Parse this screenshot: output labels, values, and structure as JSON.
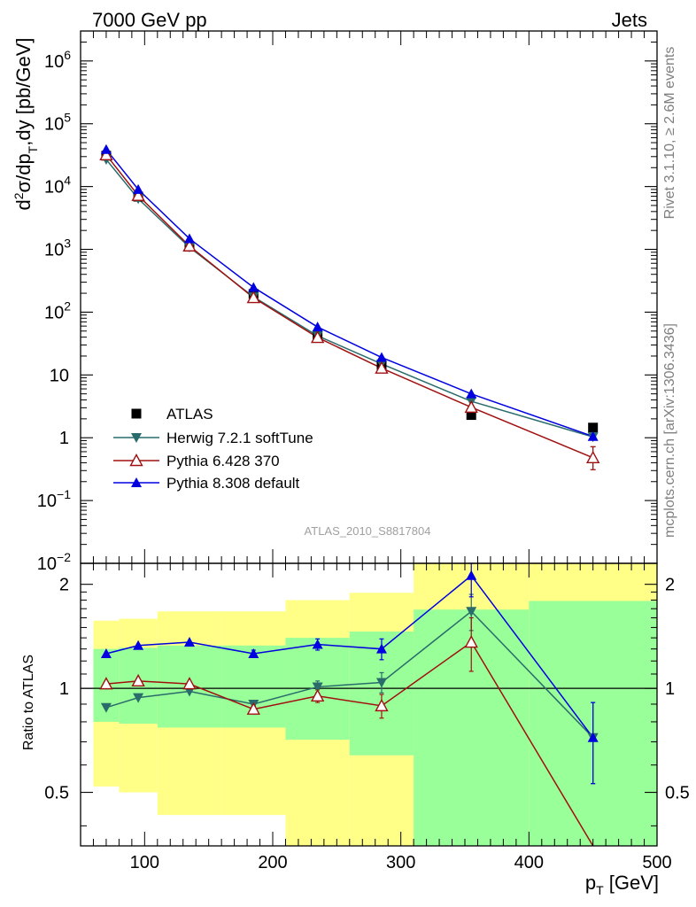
{
  "header": {
    "left": "7000 GeV pp",
    "right": "Jets"
  },
  "side": {
    "rivet": "Rivet 3.1.10, ≥ 2.6M events",
    "mcplots": "mcplots.cern.ch [arXiv:1306.3436]"
  },
  "analysis_label": "ATLAS_2010_S8817804",
  "colors": {
    "data": "#000000",
    "herwig": "#2a6b6b",
    "pythia6": "#a01010",
    "pythia8": "#0000e0",
    "band_inner": "#99ff99",
    "band_outer": "#ffff88"
  },
  "chart_data": [
    {
      "type": "line",
      "yscale": "log",
      "ylabel": "d²σ/dp_T,dy [pb/GeV]",
      "xlim": [
        50,
        500
      ],
      "ylim": [
        0.01,
        3000000
      ],
      "yticks": [
        {
          "v": 1000000,
          "m": "10",
          "e": "6"
        },
        {
          "v": 100000,
          "m": "10",
          "e": "5"
        },
        {
          "v": 10000,
          "m": "10",
          "e": "4"
        },
        {
          "v": 1000,
          "m": "10",
          "e": "3"
        },
        {
          "v": 100,
          "m": "10",
          "e": "2"
        },
        {
          "v": 10,
          "m": "10",
          "e": ""
        },
        {
          "v": 1,
          "m": "1",
          "e": ""
        },
        {
          "v": 0.1,
          "m": "10",
          "e": "−1"
        },
        {
          "v": 0.01,
          "m": "10",
          "e": "−2"
        }
      ],
      "legend_position": "lower-left",
      "x": [
        70,
        95,
        135,
        185,
        235,
        285,
        355,
        450
      ],
      "xerr": [
        [
          60,
          80
        ],
        [
          80,
          110
        ],
        [
          110,
          160
        ],
        [
          160,
          210
        ],
        [
          210,
          260
        ],
        [
          260,
          310
        ],
        [
          310,
          400
        ],
        [
          400,
          500
        ]
      ],
      "series": [
        {
          "key": "data",
          "name": "ATLAS",
          "marker": "square",
          "values": [
            31000,
            6900,
            1120,
            195,
            42,
            14.5,
            2.3,
            1.45
          ]
        },
        {
          "key": "herwig",
          "name": "Herwig 7.2.1 softTune",
          "marker": "triangle-down",
          "values": [
            27000,
            6400,
            1080,
            175,
            42,
            15,
            3.8,
            1.03
          ]
        },
        {
          "key": "pythia6",
          "name": "Pythia 6.428 370",
          "marker": "triangle-up-open",
          "values": [
            32000,
            7200,
            1130,
            170,
            39.5,
            12.8,
            3.05,
            0.48
          ]
        },
        {
          "key": "pythia8",
          "name": "Pythia 8.308 default",
          "marker": "triangle-up",
          "values": [
            39000,
            9000,
            1480,
            248,
            58,
            19,
            5.0,
            1.05
          ]
        }
      ]
    },
    {
      "type": "line",
      "yscale": "log",
      "ylabel": "Ratio to ATLAS",
      "xlabel": "p_T [GeV]",
      "xlim": [
        50,
        500
      ],
      "ylim": [
        0.35,
        2.3
      ],
      "xticks": [
        100,
        200,
        300,
        400,
        500
      ],
      "yticks": [
        {
          "v": 0.5,
          "label": "0.5"
        },
        {
          "v": 1,
          "label": "1"
        },
        {
          "v": 2,
          "label": "2"
        }
      ],
      "x": [
        70,
        95,
        135,
        185,
        235,
        285,
        355,
        450
      ],
      "bands": {
        "edges": [
          60,
          80,
          110,
          160,
          210,
          260,
          310,
          400,
          500
        ],
        "inner": [
          [
            0.8,
            1.3
          ],
          [
            0.79,
            1.31
          ],
          [
            0.77,
            1.33
          ],
          [
            0.77,
            1.33
          ],
          [
            0.71,
            1.4
          ],
          [
            0.64,
            1.46
          ],
          [
            0.35,
            1.69
          ],
          [
            0.35,
            1.79
          ]
        ],
        "outer": [
          [
            0.52,
            1.57
          ],
          [
            0.5,
            1.59
          ],
          [
            0.43,
            1.67
          ],
          [
            0.43,
            1.67
          ],
          [
            0.35,
            1.8
          ],
          [
            0.35,
            1.89
          ],
          [
            0.35,
            2.3
          ],
          [
            0.35,
            2.3
          ]
        ]
      },
      "series": [
        {
          "key": "herwig",
          "name": "Herwig 7.2.1 softTune",
          "marker": "triangle-down",
          "values": [
            0.88,
            0.94,
            0.98,
            0.9,
            1.01,
            1.04,
            1.67,
            0.72
          ],
          "err": [
            0,
            0,
            0,
            0.02,
            0.04,
            0.07,
            0.2,
            0.19
          ]
        },
        {
          "key": "pythia6",
          "name": "Pythia 6.428 370",
          "marker": "triangle-up-open",
          "values": [
            1.03,
            1.05,
            1.03,
            0.87,
            0.95,
            0.89,
            1.36,
            0.33
          ],
          "err": [
            0,
            0,
            0,
            0.02,
            0.04,
            0.07,
            0.24,
            0
          ]
        },
        {
          "key": "pythia8",
          "name": "Pythia 8.308 default",
          "marker": "triangle-up",
          "values": [
            1.26,
            1.33,
            1.36,
            1.26,
            1.34,
            1.3,
            2.12,
            0.72
          ],
          "err": [
            0,
            0,
            0,
            0.03,
            0.05,
            0.09,
            0.28,
            0.19
          ]
        }
      ]
    }
  ]
}
